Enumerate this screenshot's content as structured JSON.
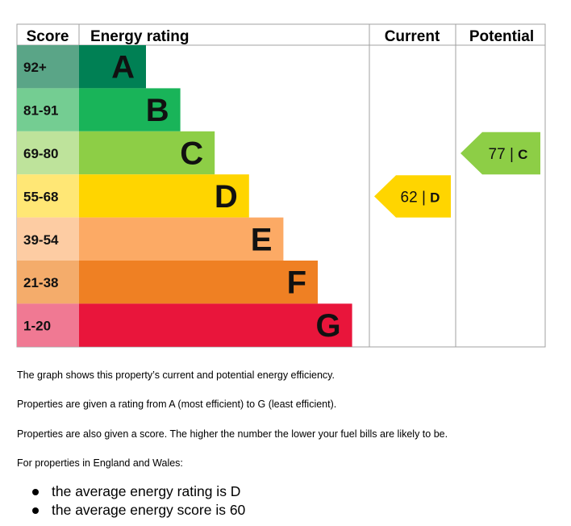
{
  "chart_data": {
    "type": "table",
    "headers": {
      "score": "Score",
      "rating": "Energy rating",
      "current": "Current",
      "potential": "Potential"
    },
    "bands": [
      {
        "range": "92+",
        "letter": "A",
        "color": "#008054",
        "range_color": "#5aa587"
      },
      {
        "range": "81-91",
        "letter": "B",
        "color": "#19b459",
        "range_color": "#74cd92"
      },
      {
        "range": "69-80",
        "letter": "C",
        "color": "#8dce46",
        "range_color": "#bee39b"
      },
      {
        "range": "55-68",
        "letter": "D",
        "color": "#ffd500",
        "range_color": "#ffe775"
      },
      {
        "range": "39-54",
        "letter": "E",
        "color": "#fcaa65",
        "range_color": "#fdcca3"
      },
      {
        "range": "21-38",
        "letter": "F",
        "color": "#ef8023",
        "range_color": "#f4ac6b"
      },
      {
        "range": "1-20",
        "letter": "G",
        "color": "#e9153b",
        "range_color": "#f07993"
      }
    ],
    "current": {
      "score": 62,
      "letter": "D",
      "label": "62 | D",
      "color": "#ffd500"
    },
    "potential": {
      "score": 77,
      "letter": "C",
      "label": "77 | C",
      "color": "#8dce46"
    }
  },
  "text": {
    "p1": "The graph shows this property’s current and potential energy efficiency.",
    "p2": "Properties are given a rating from A (most efficient) to G (least efficient).",
    "p3": "Properties are also given a score. The higher the number the lower your fuel bills are likely to be.",
    "p4": "For properties in England and Wales:",
    "bullets": [
      "the average energy rating is D",
      "the average energy score is 60"
    ]
  }
}
